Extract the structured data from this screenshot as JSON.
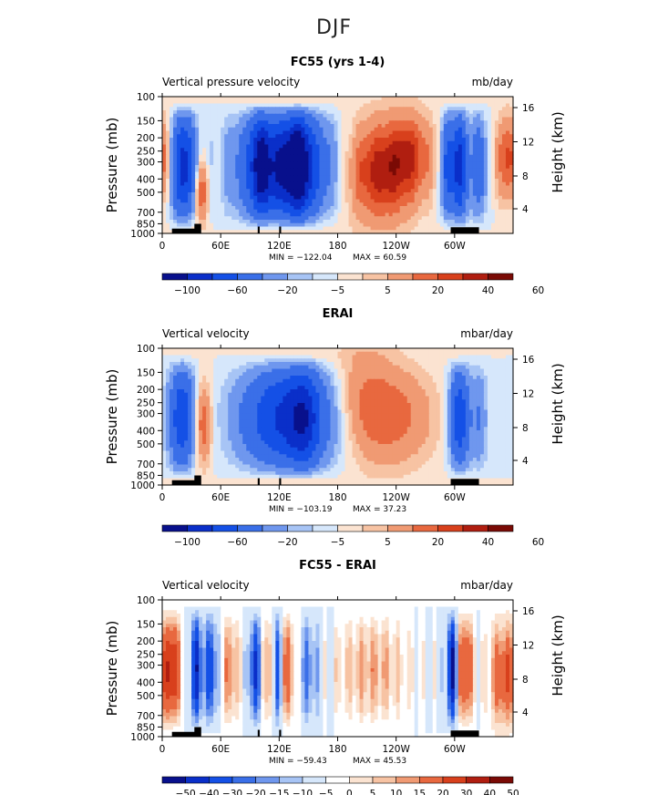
{
  "page": {
    "title": "DJF"
  },
  "colors": {
    "neg": [
      "#08108c",
      "#0a2fc9",
      "#1450e6",
      "#3a6fe8",
      "#6f97ee",
      "#a7c4f5",
      "#d6e7fb"
    ],
    "pos": [
      "#fbe3d1",
      "#f7c3a3",
      "#f09a73",
      "#e8683f",
      "#d8401c",
      "#b01e10",
      "#7a0a05"
    ]
  },
  "chart_data": [
    {
      "type": "heatmap",
      "title": "FC55 (yrs 1-4)",
      "left_subtitle": "Vertical pressure velocity",
      "right_subtitle": "mb/day",
      "ylabel": "Pressure (mb)",
      "ylabel_right": "Height (km)",
      "x_ticks": [
        "0",
        "60E",
        "120E",
        "180",
        "120W",
        "60W"
      ],
      "y_ticks": [
        "100",
        "150",
        "200",
        "250",
        "300",
        "400",
        "500",
        "700",
        "850",
        "1000"
      ],
      "y_right_ticks": [
        "16",
        "12",
        "8",
        "4"
      ],
      "xlim": [
        0,
        360
      ],
      "ylim": [
        1000,
        100
      ],
      "min_label": "MIN = −122.04",
      "max_label": "MAX =  60.59",
      "colorbar_labels": [
        "−100",
        "−60",
        "−20",
        "−5",
        "5",
        "20",
        "40",
        "60"
      ]
    },
    {
      "type": "heatmap",
      "title": "ERAI",
      "left_subtitle": "Vertical velocity",
      "right_subtitle": "mbar/day",
      "ylabel": "Pressure (mb)",
      "ylabel_right": "Height (km)",
      "x_ticks": [
        "0",
        "60E",
        "120E",
        "180",
        "120W",
        "60W"
      ],
      "y_ticks": [
        "100",
        "150",
        "200",
        "250",
        "300",
        "400",
        "500",
        "700",
        "850",
        "1000"
      ],
      "y_right_ticks": [
        "16",
        "12",
        "8",
        "4"
      ],
      "xlim": [
        0,
        360
      ],
      "ylim": [
        1000,
        100
      ],
      "min_label": "MIN = −103.19",
      "max_label": "MAX =  37.23",
      "colorbar_labels": [
        "−100",
        "−60",
        "−20",
        "−5",
        "5",
        "20",
        "40",
        "60"
      ]
    },
    {
      "type": "heatmap",
      "title": "FC55 - ERAI",
      "left_subtitle": "Vertical velocity",
      "right_subtitle": "mbar/day",
      "ylabel": "Pressure (mb)",
      "ylabel_right": "Height (km)",
      "x_ticks": [
        "0",
        "60E",
        "120E",
        "180",
        "120W",
        "60W"
      ],
      "y_ticks": [
        "100",
        "150",
        "200",
        "250",
        "300",
        "400",
        "500",
        "700",
        "850",
        "1000"
      ],
      "y_right_ticks": [
        "16",
        "12",
        "8",
        "4"
      ],
      "xlim": [
        0,
        360
      ],
      "ylim": [
        1000,
        100
      ],
      "min_label": "MIN = −59.43",
      "max_label": "MAX =  45.53",
      "colorbar_labels": [
        "−50",
        "−40",
        "−30",
        "−20",
        "−15",
        "−10",
        "−5",
        "0",
        "5",
        "10",
        "15",
        "20",
        "30",
        "40",
        "50"
      ]
    }
  ]
}
